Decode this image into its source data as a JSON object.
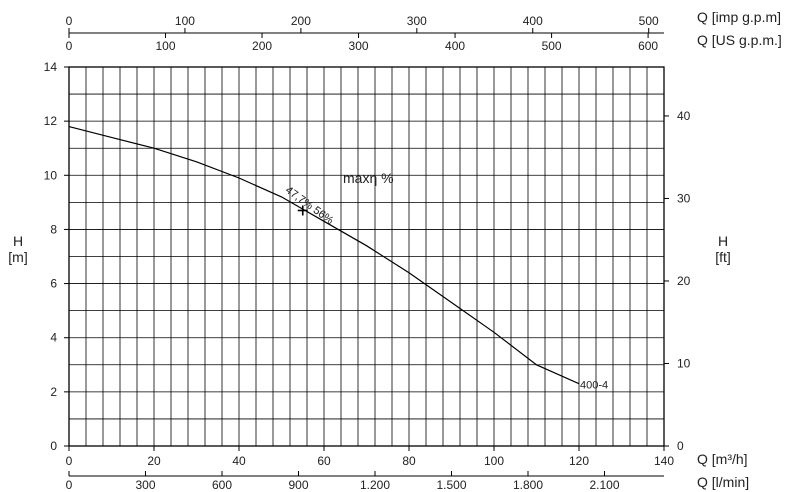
{
  "chart_data": {
    "type": "line",
    "series": [
      {
        "name": "400-4",
        "x_unit": "m3/h",
        "y_unit": "m",
        "x": [
          0,
          10,
          20,
          30,
          40,
          50,
          55,
          60,
          70,
          80,
          90,
          100,
          110,
          120
        ],
        "y": [
          11.8,
          11.4,
          11.0,
          10.5,
          9.9,
          9.2,
          8.75,
          8.3,
          7.4,
          6.4,
          5.3,
          4.2,
          3.0,
          2.3
        ]
      }
    ],
    "best_efficiency_point": {
      "x": 55,
      "y": 8.7,
      "label": "47,7% 56%"
    },
    "annotation": "maxη %",
    "axes": {
      "bottom": {
        "label": "Q [m³/h]",
        "range": [
          0,
          140
        ],
        "ticks": [
          "0",
          "20",
          "40",
          "60",
          "80",
          "100",
          "120",
          "140"
        ]
      },
      "bottom2": {
        "label": "Q [l/min]",
        "ticks": [
          "0",
          "300",
          "600",
          "900",
          "1.200",
          "1.500",
          "1.800",
          "2.100"
        ]
      },
      "top": {
        "label": "Q [imp g.p.m]",
        "ticks": [
          "0",
          "100",
          "200",
          "300",
          "400",
          "500"
        ]
      },
      "top2": {
        "label": "Q [US g.p.m.]",
        "ticks": [
          "0",
          "100",
          "200",
          "300",
          "400",
          "500",
          "600"
        ]
      },
      "left": {
        "label": "H",
        "unit": "[m]",
        "range": [
          0,
          14
        ],
        "ticks": [
          "0",
          "2",
          "4",
          "6",
          "8",
          "10",
          "12",
          "14"
        ]
      },
      "right": {
        "label": "H",
        "unit": "[ft]",
        "ticks": [
          "0",
          "10",
          "20",
          "30",
          "40"
        ]
      }
    },
    "grid": true
  }
}
